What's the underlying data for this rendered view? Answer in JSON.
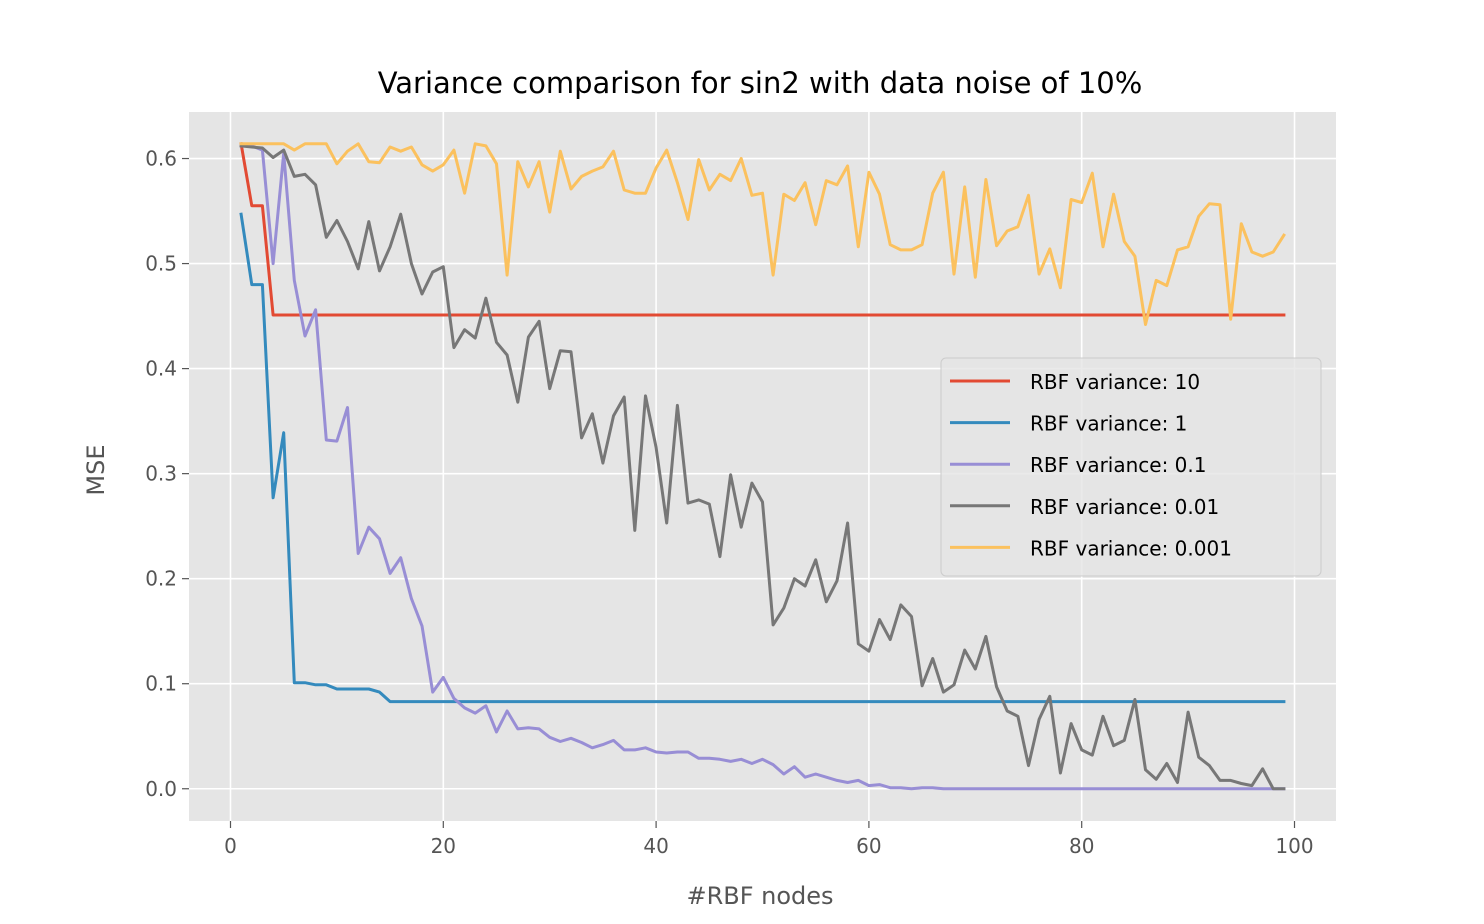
{
  "chart_data": {
    "type": "line",
    "title": "Variance comparison for sin2 with data noise of 10%",
    "xlabel": "#RBF nodes",
    "ylabel": "MSE",
    "xlim": [
      -3.9,
      103.9
    ],
    "ylim": [
      -0.0307,
      0.6443
    ],
    "xticks": [
      0,
      20,
      40,
      60,
      80,
      100
    ],
    "yticks": [
      0.0,
      0.1,
      0.2,
      0.3,
      0.4,
      0.5,
      0.6
    ],
    "xtick_labels": [
      "0",
      "20",
      "40",
      "60",
      "80",
      "100"
    ],
    "ytick_labels": [
      "0.0",
      "0.1",
      "0.2",
      "0.3",
      "0.4",
      "0.5",
      "0.6"
    ],
    "grid": true,
    "legend_position": "center-right",
    "background": "#E5E5E5",
    "series": [
      {
        "name": "RBF variance: 10",
        "color": "#E24A33",
        "x": [
          1,
          2,
          3,
          4,
          99
        ],
        "y": [
          0.614,
          0.555,
          0.555,
          0.451,
          0.451
        ]
      },
      {
        "name": "RBF variance: 1",
        "color": "#348ABD",
        "x": [
          1,
          2,
          3,
          4,
          5,
          6,
          7,
          8,
          9,
          10,
          11,
          12,
          13,
          14,
          15,
          16,
          17,
          99
        ],
        "y": [
          0.547,
          0.48,
          0.48,
          0.277,
          0.339,
          0.101,
          0.101,
          0.099,
          0.099,
          0.095,
          0.095,
          0.095,
          0.095,
          0.092,
          0.083,
          0.083,
          0.083,
          0.083
        ]
      },
      {
        "name": "RBF variance: 0.1",
        "color": "#988ED5",
        "x": [
          1,
          2,
          3,
          4,
          5,
          6,
          7,
          8,
          9,
          10,
          11,
          12,
          13,
          14,
          15,
          16,
          17,
          18,
          19,
          20,
          21,
          22,
          23,
          24,
          25,
          26,
          27,
          28,
          29,
          30,
          31,
          32,
          33,
          34,
          35,
          36,
          37,
          38,
          39,
          40,
          41,
          42,
          43,
          44,
          45,
          46,
          47,
          48,
          49,
          50,
          51,
          52,
          53,
          54,
          55,
          56,
          57,
          58,
          59,
          60,
          61,
          62,
          63,
          64,
          65,
          66,
          67,
          68,
          99
        ],
        "y": [
          0.612,
          0.612,
          0.608,
          0.5,
          0.605,
          0.484,
          0.431,
          0.456,
          0.332,
          0.331,
          0.363,
          0.224,
          0.249,
          0.238,
          0.205,
          0.22,
          0.181,
          0.155,
          0.092,
          0.106,
          0.086,
          0.077,
          0.072,
          0.079,
          0.054,
          0.074,
          0.057,
          0.058,
          0.057,
          0.049,
          0.045,
          0.048,
          0.044,
          0.039,
          0.042,
          0.046,
          0.037,
          0.037,
          0.039,
          0.035,
          0.034,
          0.035,
          0.035,
          0.029,
          0.029,
          0.028,
          0.026,
          0.028,
          0.024,
          0.028,
          0.023,
          0.014,
          0.021,
          0.011,
          0.014,
          0.011,
          0.008,
          0.006,
          0.008,
          0.003,
          0.004,
          0.001,
          0.001,
          0.0,
          0.001,
          0.001,
          0.0,
          0.0,
          0.0
        ]
      },
      {
        "name": "RBF variance: 0.01",
        "color": "#777777",
        "x": [
          1,
          2,
          3,
          4,
          5,
          6,
          7,
          8,
          9,
          10,
          11,
          12,
          13,
          14,
          15,
          16,
          17,
          18,
          19,
          20,
          21,
          22,
          23,
          24,
          25,
          26,
          27,
          28,
          29,
          30,
          31,
          32,
          33,
          34,
          35,
          36,
          37,
          38,
          39,
          40,
          41,
          42,
          43,
          44,
          45,
          46,
          47,
          48,
          49,
          50,
          51,
          52,
          53,
          54,
          55,
          56,
          57,
          58,
          59,
          60,
          61,
          62,
          63,
          64,
          65,
          66,
          67,
          68,
          69,
          70,
          71,
          72,
          73,
          74,
          75,
          76,
          77,
          78,
          79,
          80,
          81,
          82,
          83,
          84,
          85,
          86,
          87,
          88,
          89,
          90,
          91,
          92,
          93,
          94,
          95,
          96,
          97,
          98,
          99
        ],
        "y": [
          0.612,
          0.611,
          0.61,
          0.601,
          0.608,
          0.583,
          0.585,
          0.575,
          0.525,
          0.541,
          0.521,
          0.495,
          0.54,
          0.493,
          0.516,
          0.547,
          0.5,
          0.471,
          0.492,
          0.497,
          0.42,
          0.437,
          0.429,
          0.467,
          0.425,
          0.413,
          0.368,
          0.43,
          0.445,
          0.381,
          0.417,
          0.416,
          0.334,
          0.357,
          0.31,
          0.355,
          0.373,
          0.246,
          0.374,
          0.325,
          0.253,
          0.365,
          0.272,
          0.275,
          0.271,
          0.221,
          0.299,
          0.249,
          0.291,
          0.273,
          0.156,
          0.172,
          0.2,
          0.193,
          0.218,
          0.178,
          0.198,
          0.253,
          0.138,
          0.131,
          0.161,
          0.142,
          0.175,
          0.164,
          0.098,
          0.124,
          0.092,
          0.099,
          0.132,
          0.114,
          0.145,
          0.097,
          0.074,
          0.069,
          0.022,
          0.066,
          0.088,
          0.015,
          0.062,
          0.037,
          0.032,
          0.069,
          0.041,
          0.046,
          0.085,
          0.018,
          0.009,
          0.024,
          0.006,
          0.073,
          0.03,
          0.022,
          0.008,
          0.008,
          0.005,
          0.003,
          0.019,
          0.0,
          0.0
        ]
      },
      {
        "name": "RBF variance: 0.001",
        "color": "#FBC15E",
        "x": [
          1,
          2,
          3,
          4,
          5,
          6,
          7,
          8,
          9,
          10,
          11,
          12,
          13,
          14,
          15,
          16,
          17,
          18,
          19,
          20,
          21,
          22,
          23,
          24,
          25,
          26,
          27,
          28,
          29,
          30,
          31,
          32,
          33,
          34,
          35,
          36,
          37,
          38,
          39,
          40,
          41,
          42,
          43,
          44,
          45,
          46,
          47,
          48,
          49,
          50,
          51,
          52,
          53,
          54,
          55,
          56,
          57,
          58,
          59,
          60,
          61,
          62,
          63,
          64,
          65,
          66,
          67,
          68,
          69,
          70,
          71,
          72,
          73,
          74,
          75,
          76,
          77,
          78,
          79,
          80,
          81,
          82,
          83,
          84,
          85,
          86,
          87,
          88,
          89,
          90,
          91,
          92,
          93,
          94,
          95,
          96,
          97,
          98,
          99
        ],
        "y": [
          0.614,
          0.614,
          0.614,
          0.614,
          0.614,
          0.608,
          0.614,
          0.614,
          0.614,
          0.595,
          0.607,
          0.614,
          0.597,
          0.596,
          0.611,
          0.607,
          0.611,
          0.594,
          0.588,
          0.594,
          0.608,
          0.567,
          0.614,
          0.612,
          0.595,
          0.489,
          0.597,
          0.573,
          0.597,
          0.549,
          0.607,
          0.571,
          0.583,
          0.588,
          0.592,
          0.607,
          0.57,
          0.567,
          0.567,
          0.591,
          0.608,
          0.577,
          0.542,
          0.599,
          0.57,
          0.585,
          0.579,
          0.6,
          0.565,
          0.567,
          0.489,
          0.566,
          0.56,
          0.577,
          0.537,
          0.579,
          0.575,
          0.593,
          0.516,
          0.587,
          0.566,
          0.518,
          0.513,
          0.513,
          0.518,
          0.567,
          0.587,
          0.49,
          0.573,
          0.487,
          0.58,
          0.517,
          0.531,
          0.535,
          0.565,
          0.49,
          0.514,
          0.477,
          0.561,
          0.558,
          0.586,
          0.516,
          0.566,
          0.521,
          0.507,
          0.442,
          0.484,
          0.479,
          0.513,
          0.516,
          0.545,
          0.557,
          0.556,
          0.447,
          0.538,
          0.511,
          0.507,
          0.511,
          0.527
        ]
      }
    ]
  }
}
